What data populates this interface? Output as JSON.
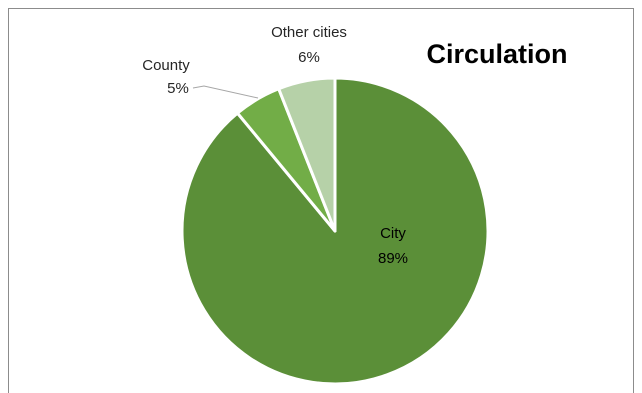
{
  "chart_data": {
    "type": "pie",
    "title": "Circulation",
    "slices": [
      {
        "name": "City",
        "value": 89,
        "label_pct": "89%",
        "color": "#5b8f38"
      },
      {
        "name": "County",
        "value": 5,
        "label_pct": "5%",
        "color": "#72ad47"
      },
      {
        "name": "Other cities",
        "value": 6,
        "label_pct": "6%",
        "color": "#b6d1a8"
      }
    ],
    "start_angle_deg": 0,
    "direction": "clockwise",
    "legend": "none",
    "slice_border_color": "#ffffff",
    "leader_line_color": "#a6a6a6"
  }
}
